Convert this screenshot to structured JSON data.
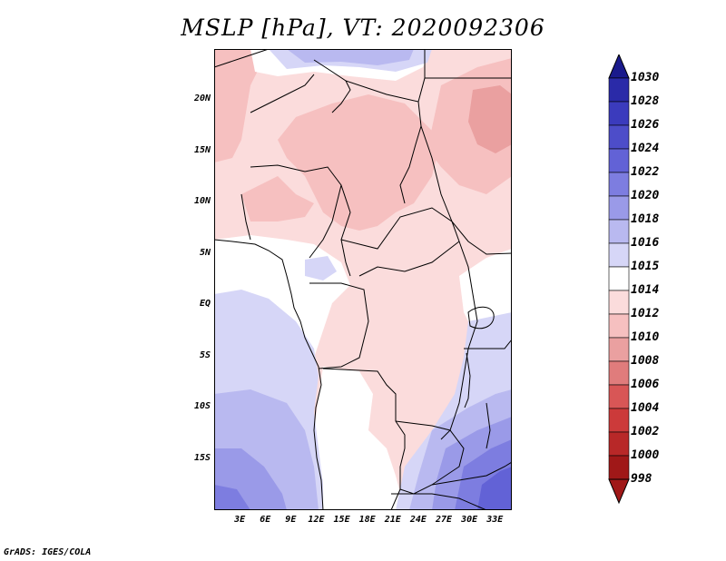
{
  "title": "MSLP [hPa], VT: 2020092306",
  "footer": "GrADS: IGES/COLA",
  "map": {
    "variable": "MSLP",
    "units": "hPa",
    "valid_time": "2020092306",
    "lon_range": [
      0,
      35
    ],
    "lat_range": [
      -20,
      25
    ],
    "lat_labels": [
      "20N",
      "15N",
      "10N",
      "5N",
      "EQ",
      "5S",
      "10S",
      "15S"
    ],
    "lat_values": [
      20,
      15,
      10,
      5,
      0,
      -5,
      -10,
      -15
    ],
    "lon_labels": [
      "3E",
      "6E",
      "9E",
      "12E",
      "15E",
      "18E",
      "21E",
      "24E",
      "27E",
      "30E",
      "33E"
    ],
    "lon_values": [
      3,
      6,
      9,
      12,
      15,
      18,
      21,
      24,
      27,
      30,
      33
    ]
  },
  "colorbar": {
    "levels": [
      "1030",
      "1028",
      "1026",
      "1024",
      "1022",
      "1020",
      "1018",
      "1016",
      "1015",
      "1014",
      "1012",
      "1010",
      "1008",
      "1006",
      "1004",
      "1002",
      "1000",
      "998"
    ],
    "colors": [
      "#1a1a8c",
      "#2a2aa8",
      "#3b3bbd",
      "#4d4dc9",
      "#6262d6",
      "#7d7de0",
      "#9a9ae8",
      "#b9b9f0",
      "#d6d6f7",
      "#ffffff",
      "#fbdcdc",
      "#f6c0c0",
      "#eaa0a0",
      "#e07c7c",
      "#d85656",
      "#cc3a3a",
      "#b82828",
      "#a01818"
    ]
  },
  "colors": {
    "land_border": "#000000",
    "frame": "#000000"
  }
}
